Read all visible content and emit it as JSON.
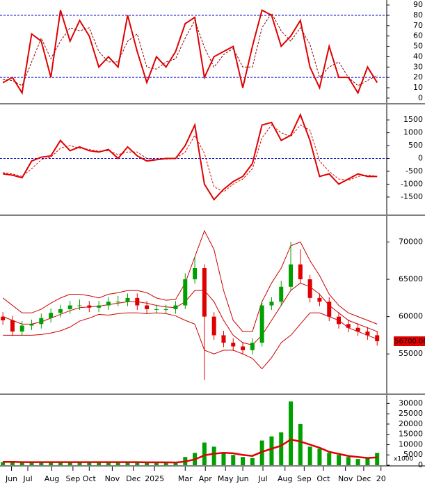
{
  "chart_data": [
    {
      "type": "line",
      "xlim": [
        -0.3,
        40
      ],
      "ylim": [
        -4.8,
        94.8
      ],
      "yticks": [
        0,
        10,
        20,
        30,
        40,
        50,
        60,
        70,
        80,
        90
      ],
      "ref_lines": [
        80,
        20
      ],
      "series": [
        {
          "color": "#e00000",
          "values": [
            15,
            20,
            5,
            62,
            55,
            20,
            85,
            55,
            75,
            60,
            30,
            40,
            30,
            80,
            45,
            15,
            40,
            30,
            45,
            72,
            78,
            20,
            40,
            45,
            50,
            10,
            50,
            85,
            80,
            50,
            60,
            75,
            30,
            10,
            50,
            20,
            20,
            5,
            30,
            15
          ]
        },
        {
          "color": "#8b0000",
          "dash": true,
          "values": [
            18,
            17,
            12,
            35,
            58,
            38,
            55,
            68,
            65,
            68,
            45,
            35,
            35,
            55,
            62,
            30,
            28,
            35,
            38,
            58,
            75,
            49,
            30,
            42,
            48,
            30,
            30,
            68,
            82,
            65,
            55,
            68,
            52,
            20,
            30,
            35,
            20,
            12,
            17,
            22
          ]
        }
      ]
    },
    {
      "type": "line",
      "xlim": [
        -0.3,
        40
      ],
      "ylim": [
        -2180,
        2100
      ],
      "yticks": [
        -1500,
        -1000,
        -500,
        0,
        500,
        1000,
        1500
      ],
      "ref_lines": [
        0
      ],
      "series": [
        {
          "color": "#e00000",
          "values": [
            -600,
            -650,
            -750,
            -100,
            50,
            100,
            700,
            300,
            450,
            300,
            250,
            350,
            0,
            450,
            100,
            -100,
            -50,
            0,
            0,
            500,
            1300,
            -1000,
            -1600,
            -1200,
            -900,
            -700,
            -200,
            1300,
            1400,
            700,
            900,
            1700,
            700,
            -700,
            -600,
            -1000,
            -800,
            -600,
            -700,
            -700
          ]
        },
        {
          "color": "#e00000",
          "dash": true,
          "values": [
            -550,
            -600,
            -700,
            -400,
            -50,
            50,
            400,
            500,
            400,
            350,
            280,
            300,
            150,
            250,
            250,
            0,
            -50,
            -30,
            0,
            250,
            900,
            200,
            -1100,
            -1300,
            -1000,
            -800,
            -400,
            800,
            1300,
            1000,
            850,
            1300,
            1100,
            -100,
            -500,
            -800,
            -850,
            -700,
            -650,
            -700
          ]
        }
      ]
    },
    {
      "type": "candlestick",
      "xlim": [
        -0.3,
        40
      ],
      "ylim": [
        49700,
        73500
      ],
      "yticks": [
        55000,
        60000,
        65000,
        70000
      ],
      "up_color": "#00a000",
      "down_color": "#e00000",
      "last_price": {
        "value": 56700,
        "label": "56700.00"
      },
      "ohlc": {
        "open": [
          60000,
          59500,
          58000,
          58800,
          59000,
          59800,
          60500,
          61000,
          61500,
          61500,
          61200,
          61500,
          62000,
          62000,
          62500,
          61500,
          61000,
          61000,
          61000,
          61500,
          65000,
          66500,
          60000,
          57500,
          56500,
          56000,
          55500,
          56500,
          61500,
          62000,
          64000,
          67000,
          65000,
          62500,
          62000,
          60000,
          59000,
          58500,
          58000,
          57500
        ],
        "high": [
          60600,
          60100,
          59400,
          59600,
          60400,
          61100,
          61600,
          62100,
          62300,
          62100,
          62100,
          62600,
          62800,
          63100,
          63100,
          62100,
          61600,
          61600,
          62100,
          65800,
          68000,
          67000,
          60600,
          58100,
          57100,
          56600,
          57100,
          62100,
          62600,
          64800,
          70000,
          69000,
          65600,
          63100,
          62600,
          60600,
          59600,
          59100,
          58600,
          58100
        ],
        "low": [
          58900,
          57400,
          57400,
          58200,
          58400,
          59200,
          59900,
          60400,
          60900,
          60600,
          60600,
          60900,
          61400,
          61400,
          60900,
          60400,
          60400,
          60400,
          60400,
          61000,
          64400,
          51500,
          56900,
          55900,
          55400,
          54900,
          54900,
          56000,
          60900,
          61400,
          63400,
          64400,
          61900,
          61400,
          59400,
          58400,
          57900,
          57400,
          56900,
          56100
        ],
        "close": [
          59500,
          58000,
          58800,
          59000,
          59800,
          60500,
          61000,
          61500,
          61500,
          61200,
          61500,
          62000,
          62000,
          62500,
          61500,
          61000,
          61000,
          61000,
          61500,
          65000,
          66500,
          60000,
          57500,
          56500,
          56000,
          55500,
          56500,
          61500,
          62000,
          64000,
          67000,
          65000,
          62500,
          62000,
          60000,
          59000,
          58500,
          58000,
          57500,
          56700
        ]
      },
      "series": [
        {
          "color": "#cc0000",
          "values": [
            62500,
            61500,
            60500,
            60500,
            61000,
            61800,
            62500,
            63000,
            63000,
            62800,
            62500,
            63000,
            63200,
            63500,
            63500,
            63200,
            62500,
            62200,
            62300,
            64500,
            68000,
            71500,
            69000,
            63500,
            59500,
            58000,
            58000,
            62000,
            64500,
            66500,
            69500,
            70000,
            67500,
            65500,
            63000,
            61500,
            60500,
            60000,
            59500,
            59000
          ]
        },
        {
          "color": "#cc0000",
          "values": [
            60000,
            59500,
            59000,
            59000,
            59300,
            59800,
            60300,
            60800,
            61200,
            61300,
            61400,
            61600,
            61800,
            62000,
            62000,
            61800,
            61500,
            61300,
            61200,
            62000,
            63500,
            63500,
            62000,
            59500,
            57500,
            56500,
            56200,
            57500,
            59500,
            61500,
            63500,
            64500,
            64000,
            63000,
            61500,
            60500,
            59500,
            59000,
            58500,
            58000
          ]
        },
        {
          "color": "#cc0000",
          "values": [
            57500,
            57500,
            57500,
            57500,
            57600,
            57800,
            58100,
            58600,
            59400,
            59800,
            60300,
            60200,
            60400,
            60500,
            60500,
            60400,
            60500,
            60400,
            60100,
            59500,
            59000,
            55500,
            55000,
            55500,
            55500,
            55000,
            54400,
            53000,
            54500,
            56500,
            57500,
            59000,
            60500,
            60500,
            60000,
            59500,
            58500,
            58000,
            57500,
            57000
          ]
        }
      ]
    },
    {
      "type": "bar",
      "xlim": [
        -0.3,
        40
      ],
      "ylim": [
        0,
        34200
      ],
      "yticks": [
        0,
        5000,
        10000,
        15000,
        20000,
        25000,
        30000
      ],
      "unit": "x1000",
      "color": "#00a000",
      "values": [
        1500,
        1800,
        1200,
        1500,
        1300,
        1400,
        1600,
        1500,
        1400,
        1300,
        1500,
        1400,
        1300,
        1600,
        1500,
        1200,
        1300,
        1200,
        1400,
        4000,
        6000,
        11000,
        9000,
        6000,
        5000,
        4000,
        3500,
        12000,
        14000,
        16000,
        31000,
        20000,
        9000,
        8000,
        6000,
        5000,
        4000,
        3000,
        3500,
        6000
      ],
      "series": [
        {
          "color": "#e00000",
          "values": [
            1600,
            1600,
            1500,
            1500,
            1500,
            1500,
            1500,
            1500,
            1500,
            1500,
            1500,
            1500,
            1500,
            1500,
            1500,
            1400,
            1400,
            1400,
            1300,
            1800,
            2800,
            4800,
            5600,
            6000,
            5800,
            5000,
            4500,
            6500,
            8000,
            9500,
            12500,
            11500,
            10000,
            8500,
            6500,
            5500,
            4500,
            4000,
            3500,
            3800
          ]
        }
      ],
      "xticks": [
        {
          "value": 0.9,
          "label": "Jun"
        },
        {
          "value": 2.6,
          "label": "Jul"
        },
        {
          "value": 5.1,
          "label": "Aug"
        },
        {
          "value": 7.3,
          "label": "Sep"
        },
        {
          "value": 9.0,
          "label": "Oct"
        },
        {
          "value": 11.4,
          "label": "Nov"
        },
        {
          "value": 13.6,
          "label": "Dec"
        },
        {
          "value": 15.8,
          "label": "2025"
        },
        {
          "value": 19.0,
          "label": "Mar"
        },
        {
          "value": 21.1,
          "label": "Apr"
        },
        {
          "value": 23.2,
          "label": "May"
        },
        {
          "value": 25.0,
          "label": "Jun"
        },
        {
          "value": 27.1,
          "label": "Jul"
        },
        {
          "value": 29.4,
          "label": "Aug"
        },
        {
          "value": 31.4,
          "label": "Sep"
        },
        {
          "value": 33.4,
          "label": "Oct"
        },
        {
          "value": 35.7,
          "label": "Nov"
        },
        {
          "value": 37.6,
          "label": "Dec"
        },
        {
          "value": 39.4,
          "label": "20"
        }
      ]
    }
  ]
}
